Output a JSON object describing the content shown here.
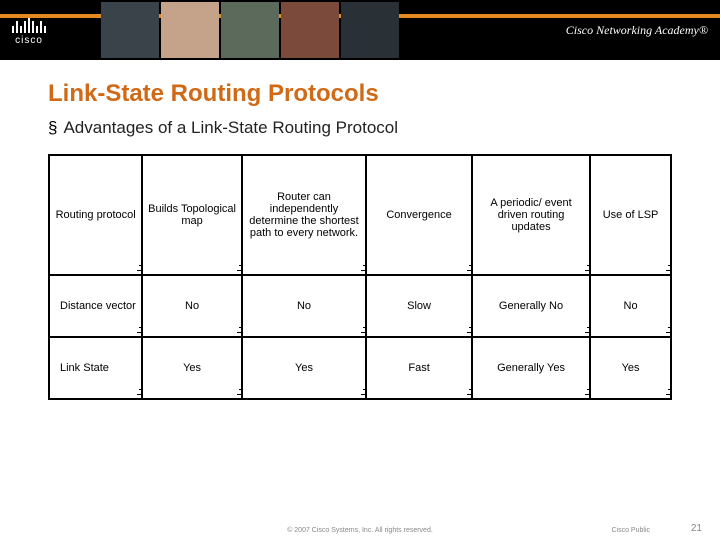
{
  "header": {
    "brand": "cisco",
    "academy": "Cisco Networking Academy®",
    "orange_strip_color": "#e08a1f",
    "photo_colors": [
      "#3a424a",
      "#c5a38a",
      "#5b6a5b",
      "#7c4a3a",
      "#2a3136"
    ]
  },
  "title": {
    "text": "Link-State Routing Protocols",
    "color": "#d06a17",
    "fontsize": 24
  },
  "subtitle": {
    "bullet": "§",
    "text": "Advantages of a Link-State Routing Protocol",
    "fontsize": 17
  },
  "table": {
    "border_color": "#000000",
    "header_fontsize": 11,
    "cell_fontsize": 11,
    "col_widths": [
      "15%",
      "16%",
      "20%",
      "17%",
      "19%",
      "13%"
    ],
    "headers": [
      "Routing protocol",
      "Builds Topological map",
      "Router can independently determine the shortest path to every network.",
      "Convergence",
      "A periodic/ event driven routing updates",
      "Use of LSP"
    ],
    "rows": [
      {
        "label": "Distance vector",
        "cells": [
          "No",
          "No",
          "Slow",
          "Generally No",
          "No"
        ]
      },
      {
        "label": "Link State",
        "cells": [
          "Yes",
          "Yes",
          "Fast",
          "Generally Yes",
          "Yes"
        ]
      }
    ]
  },
  "footer": {
    "copyright": "© 2007 Cisco Systems, Inc. All rights reserved.",
    "public": "Cisco Public",
    "page": "21"
  }
}
